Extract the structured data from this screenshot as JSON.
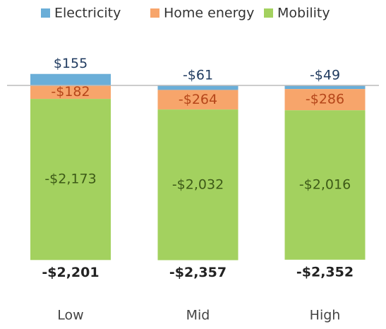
{
  "chart_data": {
    "type": "stacked_bar",
    "categories": [
      "Low",
      "Mid",
      "High"
    ],
    "series": [
      {
        "name": "Electricity",
        "color": "#6aaed8",
        "label_color": "#1f3a5f",
        "values": [
          155,
          -61,
          -49
        ],
        "value_labels": [
          "$155",
          "-$61",
          "-$49"
        ]
      },
      {
        "name": "Home energy",
        "color": "#f7a56b",
        "label_color": "#b5461a",
        "values": [
          -182,
          -264,
          -286
        ],
        "value_labels": [
          "-$182",
          "-$264",
          "-$286"
        ]
      },
      {
        "name": "Mobility",
        "color": "#a3d15f",
        "label_color": "#3d5a17",
        "values": [
          -2173,
          -2032,
          -2016
        ],
        "value_labels": [
          "-$2,173",
          "-$2,032",
          "-$2,016"
        ]
      }
    ],
    "totals": {
      "values": [
        -2201,
        -2357,
        -2352
      ],
      "labels": [
        "-$2,201",
        "-$2,357",
        "-$2,352"
      ]
    },
    "ylim": [
      -2500,
      500
    ]
  }
}
